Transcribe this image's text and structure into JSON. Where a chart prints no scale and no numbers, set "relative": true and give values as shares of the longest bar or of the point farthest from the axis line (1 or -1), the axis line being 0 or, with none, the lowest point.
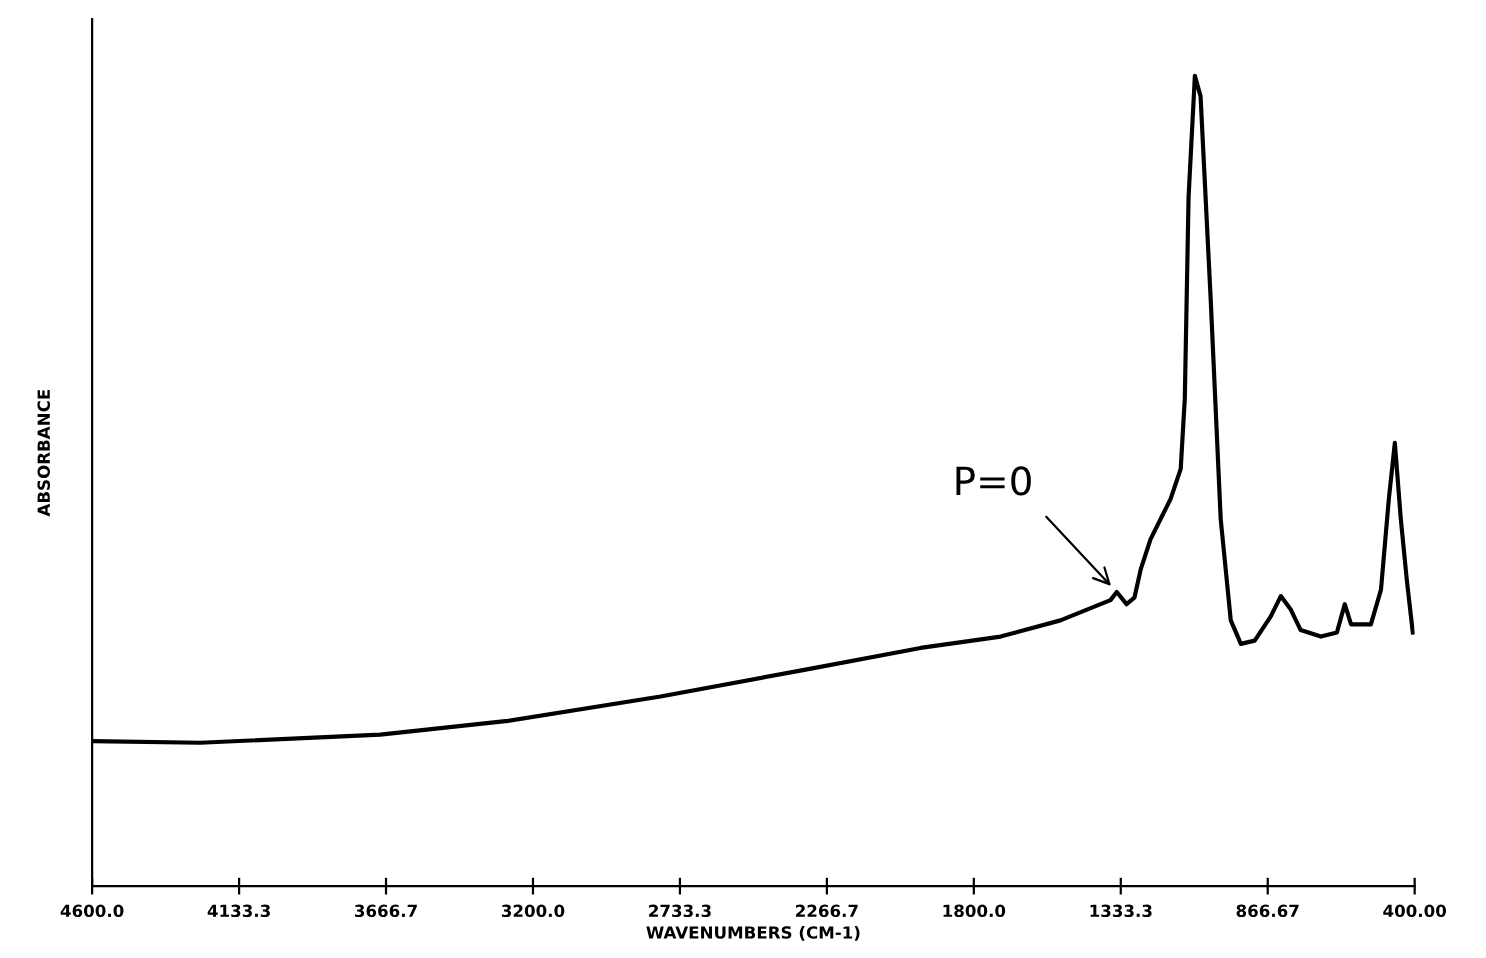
{
  "chart_data": {
    "type": "line",
    "relative": true,
    "xlabel": "WAVENUMBERS (CM-1)",
    "ylabel": "ABSORBANCE",
    "xlim": [
      4600,
      400
    ],
    "xticks": [
      {
        "value": 4600,
        "label": "4600.0"
      },
      4133.3,
      3666.7,
      {
        "value": 3200,
        "label": "3200.0"
      },
      2733.3,
      2266.7,
      {
        "value": 1800,
        "label": "1800.0"
      },
      1333.3,
      866.67,
      {
        "value": 400,
        "label": "400.00"
      }
    ],
    "tick_labels": "x",
    "grid": false,
    "line_style": "solid",
    "marker": "none",
    "x": [
      4600,
      4257,
      3685,
      3280,
      2795,
      2351,
      1969,
      1715,
      1525,
      1366,
      1346,
      1315,
      1290,
      1270,
      1239,
      1175,
      1143,
      1130,
      1118,
      1098,
      1080,
      1048,
      1016,
      984,
      952,
      908,
      857,
      825,
      793,
      762,
      698,
      647,
      622,
      602,
      539,
      507,
      482,
      463,
      444,
      425,
      406
    ],
    "series": [
      {
        "color": "#000000",
        "values": [
          0.179,
          0.177,
          0.187,
          0.204,
          0.234,
          0.266,
          0.294,
          0.308,
          0.328,
          0.353,
          0.363,
          0.348,
          0.356,
          0.391,
          0.428,
          0.478,
          0.515,
          0.602,
          0.851,
          1.0,
          0.975,
          0.726,
          0.453,
          0.328,
          0.299,
          0.303,
          0.333,
          0.358,
          0.341,
          0.316,
          0.308,
          0.313,
          0.348,
          0.323,
          0.323,
          0.366,
          0.478,
          0.547,
          0.453,
          0.378,
          0.313
        ]
      }
    ],
    "annotations": [
      {
        "text": "P=0",
        "x": 1346,
        "y": 0.363
      }
    ]
  }
}
